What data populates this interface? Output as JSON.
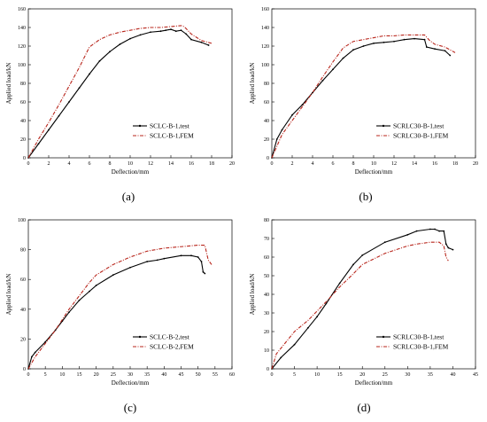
{
  "chart_data": [
    {
      "panel_label": "(a)",
      "type": "line",
      "xlabel": "Deflection/mm",
      "ylabel": "Applied load/kN",
      "xlim": [
        0,
        20
      ],
      "ylim": [
        0,
        160
      ],
      "xticks": [
        0,
        2,
        4,
        6,
        8,
        10,
        12,
        14,
        16,
        18,
        20
      ],
      "yticks": [
        0,
        20,
        40,
        60,
        80,
        100,
        120,
        140,
        160
      ],
      "legend_position": "bottom-right",
      "grid": false,
      "series": [
        {
          "name": "SCLC-B-1,test",
          "color": "#000000",
          "style": "solid",
          "marker": "dot",
          "x": [
            0,
            1,
            2,
            3,
            4,
            5,
            6,
            7,
            8,
            9,
            10,
            11,
            12,
            13,
            13.5,
            14,
            14.5,
            15,
            15.5,
            16,
            17,
            17.7
          ],
          "y": [
            0,
            15,
            30,
            45,
            60,
            75,
            90,
            104,
            114,
            122,
            128,
            132,
            135,
            136,
            137,
            138,
            136,
            137,
            133,
            127,
            124,
            121
          ]
        },
        {
          "name": "SCLC-B-1,FEM",
          "color": "#b8251b",
          "style": "dashdot",
          "marker": "none",
          "x": [
            0,
            1,
            2,
            3,
            4,
            5,
            6,
            7,
            8,
            9,
            10,
            11,
            12,
            13,
            14,
            15,
            15.3,
            16,
            17,
            18
          ],
          "y": [
            0,
            20,
            38,
            57,
            77,
            97,
            119,
            127,
            132,
            135,
            137,
            139,
            140,
            140,
            141,
            142,
            141,
            133,
            126,
            123
          ]
        }
      ]
    },
    {
      "panel_label": "(b)",
      "type": "line",
      "xlabel": "Deflection/mm",
      "ylabel": "Applied load/kN",
      "xlim": [
        0,
        20
      ],
      "ylim": [
        0,
        160
      ],
      "xticks": [
        0,
        2,
        4,
        6,
        8,
        10,
        12,
        14,
        16,
        18,
        20
      ],
      "yticks": [
        0,
        20,
        40,
        60,
        80,
        100,
        120,
        140,
        160
      ],
      "legend_position": "bottom-right",
      "grid": false,
      "series": [
        {
          "name": "SCRLC30-B-1,test",
          "color": "#000000",
          "style": "solid",
          "marker": "dot",
          "x": [
            0,
            0.5,
            1,
            2,
            3,
            4,
            5,
            6,
            7,
            8,
            9,
            10,
            11,
            12,
            13,
            14,
            15,
            15.2,
            16,
            17,
            17.5
          ],
          "y": [
            0,
            20,
            30,
            46,
            57,
            70,
            83,
            95,
            107,
            116,
            120,
            123,
            124,
            125,
            127,
            128,
            127,
            119,
            117,
            115,
            110
          ]
        },
        {
          "name": "SCRLC30-B-1,FEM",
          "color": "#b8251b",
          "style": "dashdot",
          "marker": "none",
          "x": [
            0,
            1,
            2,
            3,
            4,
            5,
            6,
            7,
            8,
            9,
            10,
            11,
            12,
            13,
            14,
            15,
            15.5,
            16,
            17,
            18
          ],
          "y": [
            0,
            25,
            40,
            55,
            70,
            87,
            103,
            118,
            125,
            127,
            129,
            131,
            131,
            132,
            132,
            132,
            126,
            122,
            119,
            113
          ]
        }
      ]
    },
    {
      "panel_label": "(c)",
      "type": "line",
      "xlabel": "Deflection/mm",
      "ylabel": "Applied load/kN",
      "xlim": [
        0,
        60
      ],
      "ylim": [
        0,
        100
      ],
      "xticks": [
        0,
        5,
        10,
        15,
        20,
        25,
        30,
        35,
        40,
        45,
        50,
        55,
        60
      ],
      "yticks": [
        0,
        20,
        40,
        60,
        80,
        100
      ],
      "legend_position": "bottom-right",
      "grid": false,
      "series": [
        {
          "name": "SCLC-B-2,test",
          "color": "#000000",
          "style": "solid",
          "marker": "dot",
          "x": [
            0,
            1,
            2,
            5,
            8,
            10,
            12,
            15,
            18,
            20,
            25,
            30,
            35,
            38,
            40,
            45,
            48,
            50,
            51,
            51.5,
            52
          ],
          "y": [
            0,
            8,
            11,
            18,
            26,
            32,
            38,
            46,
            52,
            56,
            63,
            68,
            72,
            73,
            74,
            76,
            76,
            75,
            72,
            65,
            64
          ]
        },
        {
          "name": "SCLC-B-2,FEM",
          "color": "#b8251b",
          "style": "dashdot",
          "marker": "none",
          "x": [
            0,
            2,
            5,
            8,
            10,
            12,
            15,
            18,
            20,
            25,
            30,
            35,
            40,
            45,
            50,
            52,
            52.5,
            53,
            54
          ],
          "y": [
            0,
            8,
            17,
            26,
            33,
            40,
            49,
            58,
            63,
            70,
            75,
            79,
            81,
            82,
            83,
            83,
            78,
            73,
            70
          ]
        }
      ]
    },
    {
      "panel_label": "(d)",
      "type": "line",
      "xlabel": "Deflection/mm",
      "ylabel": "Applied load/kN",
      "xlim": [
        0,
        45
      ],
      "ylim": [
        0,
        80
      ],
      "xticks": [
        0,
        5,
        10,
        15,
        20,
        25,
        30,
        35,
        40,
        45
      ],
      "yticks": [
        0,
        10,
        20,
        30,
        40,
        50,
        60,
        70,
        80
      ],
      "legend_position": "bottom-right",
      "grid": false,
      "series": [
        {
          "name": "SCRLC30-B-1,test",
          "color": "#000000",
          "style": "solid",
          "marker": "dot",
          "x": [
            0,
            2,
            5,
            8,
            10,
            12,
            15,
            18,
            20,
            25,
            30,
            32,
            35,
            36,
            37,
            38,
            38.5,
            39,
            40
          ],
          "y": [
            0,
            6,
            13,
            22,
            28,
            35,
            46,
            56,
            61,
            68,
            72,
            74,
            75,
            75,
            74,
            74,
            67,
            65,
            64
          ]
        },
        {
          "name": "SCRLC30-B-1,FEM",
          "color": "#b8251b",
          "style": "dashdot",
          "marker": "none",
          "x": [
            0,
            1,
            3,
            5,
            8,
            10,
            12,
            15,
            18,
            20,
            25,
            30,
            32,
            35,
            37,
            38,
            38.5,
            39
          ],
          "y": [
            0,
            8,
            14,
            20,
            26,
            31,
            36,
            44,
            51,
            56,
            62,
            66,
            67,
            68,
            68,
            66,
            60,
            58
          ]
        }
      ]
    }
  ]
}
